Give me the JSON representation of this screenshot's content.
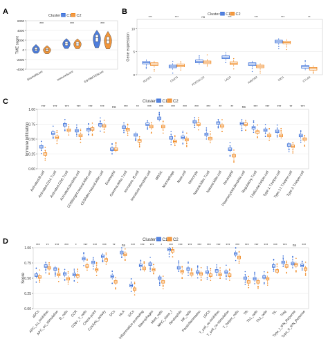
{
  "colors": {
    "c1": "#3a6fd8",
    "c2": "#f08a24",
    "grid": "#e6e6e6",
    "axis": "#444444"
  },
  "cluster_label": "Cluster",
  "cluster_names": [
    "C1",
    "C2"
  ],
  "chart_data": [
    {
      "panel": "A",
      "type": "violin",
      "ylabel": "TME score",
      "yticks": [
        -4000,
        -2000,
        0,
        2000,
        4000,
        6000
      ],
      "ylim": [
        -4000,
        6000
      ],
      "categories": [
        "StromalScore",
        "ImmuneScore",
        "ESTIMATEScore"
      ],
      "significance": [
        "***",
        "***",
        "***"
      ],
      "series": [
        {
          "name": "C1",
          "medians": [
            120,
            1300,
            2500
          ],
          "q1": [
            -200,
            900,
            1700
          ],
          "q3": [
            500,
            1700,
            3100
          ]
        },
        {
          "name": "C2",
          "medians": [
            20,
            1250,
            2000
          ],
          "q1": [
            -300,
            850,
            1300
          ],
          "q3": [
            350,
            1650,
            2700
          ]
        }
      ]
    },
    {
      "panel": "B",
      "type": "box",
      "ylabel": "Gene expression",
      "yticks": [
        0,
        5,
        10
      ],
      "ylim": [
        0,
        12
      ],
      "categories": [
        "PDCD1",
        "CD274",
        "PDCD1LG2",
        "LAG3",
        "HAVCR2",
        "IDO1",
        "CTLA4"
      ],
      "significance": [
        "***",
        "***",
        "ns",
        "***",
        "***",
        "***",
        "**"
      ],
      "series": [
        {
          "name": "C1",
          "medians": [
            2.6,
            1.8,
            2.9,
            3.8,
            2.3,
            7.2,
            1.7
          ]
        },
        {
          "name": "C2",
          "medians": [
            2.3,
            2.0,
            2.7,
            2.5,
            1.8,
            7.0,
            1.3
          ]
        }
      ]
    },
    {
      "panel": "C",
      "type": "box",
      "ylabel": "Immune infiltration",
      "yticks": [
        0.0,
        0.25,
        0.5,
        0.75,
        1.0
      ],
      "ylim": [
        0,
        1
      ],
      "categories": [
        "Activated.B.cell",
        "Activated.CD4.T.cell",
        "Activated.CD8.T.cell",
        "Activated.dendritic.cell",
        "CD56bright.natural.killer.cell",
        "CD56dim.natural.killer.cell",
        "Eosinophil",
        "Gamma.delta.T.cell",
        "Immature..B.cell",
        "Immature.dendritic.cell",
        "MDSC",
        "Macrophage",
        "Mast.cell",
        "Monocyte",
        "Natural.killer.T.cell",
        "Natural.killer.cell",
        "Neutrophil",
        "Plasmacytoid.dendritic.cell",
        "Regulatory.T.cell",
        "T.follicular.helper.cell",
        "Type.1.T.helper.cell",
        "Type.17.T.helper.cell",
        "Type.2.T.helper.cell"
      ],
      "significance": [
        "***",
        "***",
        "***",
        "***",
        "***",
        "***",
        "ns",
        "***",
        "**",
        "***",
        "***",
        "***",
        "***",
        "***",
        "***",
        "**",
        "**",
        "ns",
        "***",
        "***",
        "***",
        "**",
        "***"
      ],
      "series": [
        {
          "name": "C1",
          "medians": [
            0.37,
            0.6,
            0.74,
            0.64,
            0.66,
            0.74,
            0.33,
            0.7,
            0.57,
            0.75,
            0.85,
            0.52,
            0.53,
            0.79,
            0.58,
            0.77,
            0.33,
            0.76,
            0.69,
            0.65,
            0.63,
            0.4,
            0.56
          ]
        },
        {
          "name": "C2",
          "medians": [
            0.25,
            0.53,
            0.65,
            0.56,
            0.67,
            0.72,
            0.33,
            0.66,
            0.47,
            0.71,
            0.71,
            0.46,
            0.49,
            0.75,
            0.51,
            0.72,
            0.22,
            0.75,
            0.62,
            0.56,
            0.56,
            0.38,
            0.5
          ]
        }
      ]
    },
    {
      "panel": "D",
      "type": "box",
      "ylabel": "Score",
      "yticks": [
        0.0,
        0.25,
        0.5,
        0.75,
        1.0
      ],
      "ylim": [
        0,
        1
      ],
      "categories": [
        "aDCs",
        "APC_co_inhibition",
        "APC_co_stimulation",
        "B_cells",
        "CCR",
        "CD8+_T_cells",
        "Check-point",
        "Cytolytic_activity",
        "DCs",
        "HLA",
        "iDCs",
        "Inflammation-promoting",
        "Macrophages",
        "Mast_cells",
        "MHC_class_I",
        "Neutrophils",
        "NK_cells",
        "Parainflammation",
        "pDCs",
        "T_cell_co-inhibition",
        "T_cell_co-stimulation",
        "T_helper_cells",
        "Tfh",
        "Th1_cells",
        "Th2_cells",
        "TIL",
        "Treg",
        "Type_I_IFN_Reponse",
        "Type_II_IFN_Reponse"
      ],
      "significance": [
        "***",
        "**",
        "***",
        "***",
        "*",
        "***",
        "***",
        "***",
        "**",
        "ns",
        "***",
        "***",
        "***",
        "*",
        "***",
        "***",
        "***",
        "***",
        "***",
        "***",
        "***",
        "***",
        "***",
        "***",
        "***",
        "***",
        "***",
        "ns",
        "***"
      ],
      "series": [
        {
          "name": "C1",
          "medians": [
            0.55,
            0.7,
            0.65,
            0.57,
            0.56,
            0.82,
            0.76,
            0.86,
            0.53,
            0.92,
            0.38,
            0.71,
            0.73,
            0.5,
            0.97,
            0.67,
            0.65,
            0.6,
            0.6,
            0.62,
            0.6,
            0.9,
            0.5,
            0.49,
            0.52,
            0.7,
            0.76,
            0.74,
            0.71
          ]
        },
        {
          "name": "C2",
          "medians": [
            0.52,
            0.67,
            0.56,
            0.49,
            0.54,
            0.7,
            0.64,
            0.8,
            0.44,
            0.89,
            0.32,
            0.66,
            0.64,
            0.44,
            0.95,
            0.61,
            0.57,
            0.57,
            0.55,
            0.56,
            0.55,
            0.84,
            0.44,
            0.44,
            0.49,
            0.62,
            0.7,
            0.72,
            0.65
          ]
        }
      ]
    }
  ]
}
